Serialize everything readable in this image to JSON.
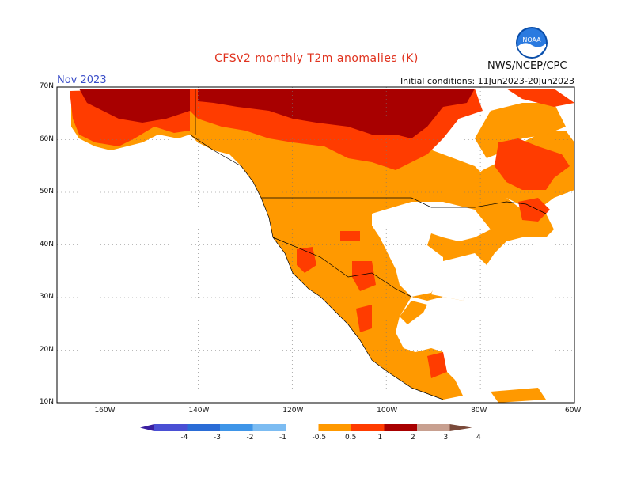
{
  "header": {
    "title": "CFSv2 monthly T2m anomalies (K)",
    "period": "Nov 2023",
    "initial_conditions": "Initial conditions: 11Jun2023-20Jun2023",
    "agency": "NWS/NCEP/CPC",
    "logo_text": "NOAA"
  },
  "map": {
    "projection": "lat-lon",
    "lon_range": [
      -170,
      -60
    ],
    "lat_range": [
      10,
      70
    ],
    "lat_labels": [
      "70N",
      "60N",
      "50N",
      "40N",
      "30N",
      "20N",
      "10N"
    ],
    "lon_labels": [
      "160W",
      "140W",
      "120W",
      "100W",
      "80W",
      "60W"
    ],
    "grid": "dotted",
    "regions": [
      {
        "name": "alaska-north-slope",
        "category": "1-2",
        "color": "#ff3c00"
      },
      {
        "name": "northern-canada",
        "category": "2-3",
        "color": "#a80000"
      },
      {
        "name": "western-canada-and-us",
        "category": "0.5-1",
        "color": "#ff9900"
      },
      {
        "name": "northeast-canada",
        "category": "1-2",
        "color": "#ff3c00"
      },
      {
        "name": "southwest-us-spots",
        "category": "1-2",
        "color": "#ff3c00"
      },
      {
        "name": "mexico",
        "category": "0.5-1",
        "color": "#ff9900"
      },
      {
        "name": "central-america",
        "category": "0.5-1",
        "color": "#ff9900"
      }
    ]
  },
  "colorbar": {
    "levels": [
      "-4",
      "-3",
      "-2",
      "-1",
      "-0.5",
      "0.5",
      "1",
      "2",
      "3",
      "4"
    ],
    "colors": [
      "#3a1fa0",
      "#4a4fd4",
      "#2a6cd6",
      "#3e95e8",
      "#7cbcf2",
      "#ffffff",
      "#ff9900",
      "#ff3c00",
      "#a80000",
      "#c8a090",
      "#7a4a3a"
    ]
  }
}
